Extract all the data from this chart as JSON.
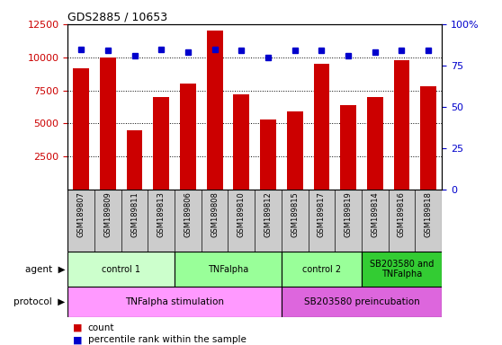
{
  "title": "GDS2885 / 10653",
  "samples": [
    "GSM189807",
    "GSM189809",
    "GSM189811",
    "GSM189813",
    "GSM189806",
    "GSM189808",
    "GSM189810",
    "GSM189812",
    "GSM189815",
    "GSM189817",
    "GSM189819",
    "GSM189814",
    "GSM189816",
    "GSM189818"
  ],
  "counts": [
    9200,
    10000,
    4500,
    7000,
    8000,
    12000,
    7200,
    5300,
    5900,
    9500,
    6400,
    7000,
    9800,
    7800
  ],
  "percentile_ranks": [
    85,
    84,
    81,
    85,
    83,
    85,
    84,
    80,
    84,
    84,
    81,
    83,
    84,
    84
  ],
  "bar_color": "#cc0000",
  "dot_color": "#0000cc",
  "ylim_left": [
    0,
    12500
  ],
  "ylim_right": [
    0,
    100
  ],
  "yticks_left": [
    2500,
    5000,
    7500,
    10000,
    12500
  ],
  "yticks_right": [
    0,
    25,
    50,
    75,
    100
  ],
  "agent_groups": [
    {
      "label": "control 1",
      "start": 0,
      "end": 4,
      "color": "#ccffcc"
    },
    {
      "label": "TNFalpha",
      "start": 4,
      "end": 8,
      "color": "#99ff99"
    },
    {
      "label": "control 2",
      "start": 8,
      "end": 11,
      "color": "#99ff99"
    },
    {
      "label": "SB203580 and\nTNFalpha",
      "start": 11,
      "end": 14,
      "color": "#33cc33"
    }
  ],
  "protocol_groups": [
    {
      "label": "TNFalpha stimulation",
      "start": 0,
      "end": 8,
      "color": "#ff99ff"
    },
    {
      "label": "SB203580 preincubation",
      "start": 8,
      "end": 14,
      "color": "#dd66dd"
    }
  ],
  "legend_count_color": "#cc0000",
  "legend_percentile_color": "#0000cc",
  "background_color": "#ffffff",
  "tick_color_left": "#cc0000",
  "tick_color_right": "#0000cc",
  "sample_bg_color": "#cccccc",
  "agent_light_green": "#ccffcc",
  "agent_mid_green": "#99ff99",
  "agent_dark_green": "#33cc33"
}
